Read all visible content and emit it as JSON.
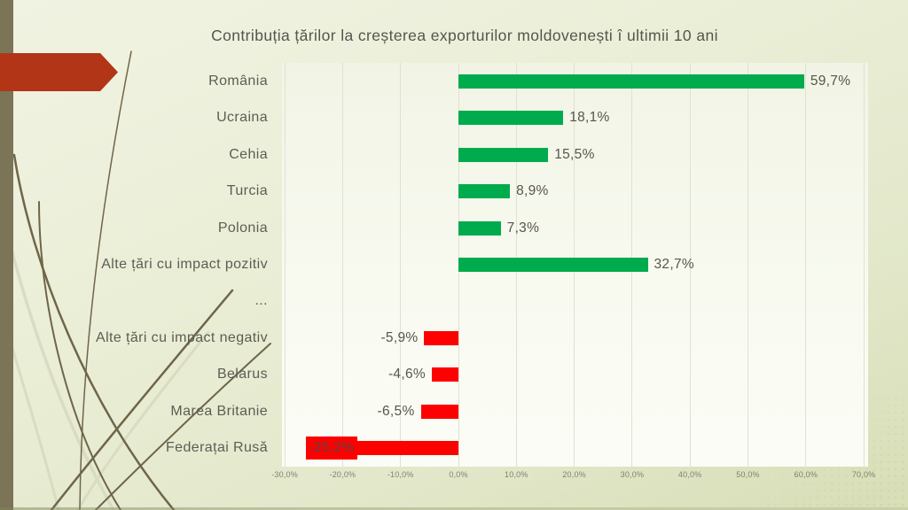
{
  "chart_data": {
    "type": "bar",
    "orientation": "horizontal",
    "title": "Contribuția țărilor la creșterea exporturilor moldovenești î ultimii 10 ani",
    "categories": [
      "România",
      "Ucraina",
      "Cehia",
      "Turcia",
      "Polonia",
      "Alte țări cu impact pozitiv",
      "...",
      "Alte țări cu impact negativ",
      "Belarus",
      "Marea Britanie",
      "Federațai Rusă"
    ],
    "values": [
      59.7,
      18.1,
      15.5,
      8.9,
      7.3,
      32.7,
      null,
      -5.9,
      -4.6,
      -6.5,
      -25.2
    ],
    "value_labels": [
      "59,7%",
      "18,1%",
      "15,5%",
      "8,9%",
      "7,3%",
      "32,7%",
      null,
      "-5,9%",
      "-4,6%",
      "-6,5%",
      "-25,2%"
    ],
    "x_ticks": [
      {
        "value": -30,
        "label": "-30,0%"
      },
      {
        "value": -20,
        "label": "-20,0%"
      },
      {
        "value": -10,
        "label": "-10,0%"
      },
      {
        "value": 0,
        "label": "0,0%"
      },
      {
        "value": 10,
        "label": "10,0%"
      },
      {
        "value": 20,
        "label": "20,0%"
      },
      {
        "value": 30,
        "label": "30,0%"
      },
      {
        "value": 40,
        "label": "40,0%"
      },
      {
        "value": 50,
        "label": "50,0%"
      },
      {
        "value": 60,
        "label": "60,0%"
      },
      {
        "value": 70,
        "label": "70,0%"
      }
    ],
    "xlim": [
      -30,
      70
    ],
    "grid": true,
    "legend": false,
    "positive_color": "#00AB4E",
    "negative_color": "#FF0000",
    "inside_label_index": 10
  },
  "decor": {
    "strip_color": "#7B7456",
    "arrow_color": "#B23517",
    "vine_dark": "#6F6549",
    "vine_light": "#D9DCC1"
  }
}
